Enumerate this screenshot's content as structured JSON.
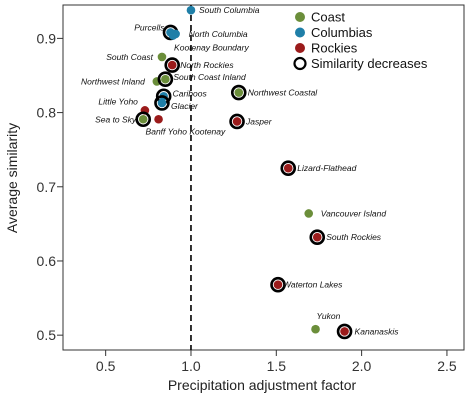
{
  "chart_data": {
    "type": "scatter",
    "xlabel": "Precipitation adjustment factor",
    "ylabel": "Average similarity",
    "xlim": [
      0.25,
      2.6
    ],
    "ylim": [
      0.48,
      0.945
    ],
    "xticks": [
      "0.5",
      "1.0",
      "1.5",
      "2.0",
      "2.5"
    ],
    "xtick_values": [
      0.5,
      1.0,
      1.5,
      2.0,
      2.5
    ],
    "yticks": [
      "0.5",
      "0.6",
      "0.7",
      "0.8",
      "0.9"
    ],
    "ytick_values": [
      0.5,
      0.6,
      0.7,
      0.8,
      0.9
    ],
    "reference_line": {
      "x": 1.0,
      "style": "dashed"
    },
    "grid": false,
    "legend": {
      "placement": "top-right",
      "entries": [
        {
          "label": "Coast",
          "color": "#6b8e3a"
        },
        {
          "label": "Columbias",
          "color": "#1f7fa8"
        },
        {
          "label": "Rockies",
          "color": "#9b1b1b"
        },
        {
          "label": "Similarity decreases",
          "marker": "ring"
        }
      ]
    },
    "colors": {
      "Coast": "#6b8e3a",
      "Columbias": "#1f7fa8",
      "Rockies": "#9b1b1b",
      "ring": "#000000"
    },
    "points": [
      {
        "label": "South Columbia",
        "x": 1.0,
        "y": 0.938,
        "group": "Columbias",
        "decrease": false
      },
      {
        "label": "Purcells",
        "x": 0.88,
        "y": 0.908,
        "group": "Columbias",
        "decrease": true
      },
      {
        "label": "North Columbia",
        "x": 0.91,
        "y": 0.906,
        "group": "Columbias",
        "decrease": false
      },
      {
        "label": "Kootenay Boundary",
        "x": 0.895,
        "y": 0.904,
        "group": "Columbias",
        "decrease": false
      },
      {
        "label": "South Coast",
        "x": 0.83,
        "y": 0.875,
        "group": "Coast",
        "decrease": false
      },
      {
        "label": "North Rockies",
        "x": 0.89,
        "y": 0.864,
        "group": "Rockies",
        "decrease": true
      },
      {
        "label": "Northwest Inland",
        "x": 0.8,
        "y": 0.842,
        "group": "Coast",
        "decrease": false
      },
      {
        "label": "South Coast Inland",
        "x": 0.85,
        "y": 0.845,
        "group": "Coast",
        "decrease": true
      },
      {
        "label": "Northwest Coastal",
        "x": 1.28,
        "y": 0.827,
        "group": "Coast",
        "decrease": true
      },
      {
        "label": "Cariboos",
        "x": 0.84,
        "y": 0.822,
        "group": "Columbias",
        "decrease": true
      },
      {
        "label": "Glacier",
        "x": 0.83,
        "y": 0.813,
        "group": "Columbias",
        "decrease": true
      },
      {
        "label": "Little Yoho",
        "x": 0.73,
        "y": 0.803,
        "group": "Rockies",
        "decrease": false
      },
      {
        "label": "Sea to Sky",
        "x": 0.72,
        "y": 0.791,
        "group": "Coast",
        "decrease": true
      },
      {
        "label": "Banff Yoho Kootenay",
        "x": 0.81,
        "y": 0.791,
        "group": "Rockies",
        "decrease": false
      },
      {
        "label": "Jasper",
        "x": 1.27,
        "y": 0.788,
        "group": "Rockies",
        "decrease": true
      },
      {
        "label": "Lizard-Flathead",
        "x": 1.57,
        "y": 0.725,
        "group": "Rockies",
        "decrease": true
      },
      {
        "label": "Vancouver Island",
        "x": 1.69,
        "y": 0.664,
        "group": "Coast",
        "decrease": false
      },
      {
        "label": "South Rockies",
        "x": 1.74,
        "y": 0.632,
        "group": "Rockies",
        "decrease": true
      },
      {
        "label": "Waterton Lakes",
        "x": 1.51,
        "y": 0.568,
        "group": "Rockies",
        "decrease": true
      },
      {
        "label": "Yukon",
        "x": 1.73,
        "y": 0.508,
        "group": "Coast",
        "decrease": false
      },
      {
        "label": "Kananaskis",
        "x": 1.9,
        "y": 0.505,
        "group": "Rockies",
        "decrease": true
      }
    ]
  }
}
